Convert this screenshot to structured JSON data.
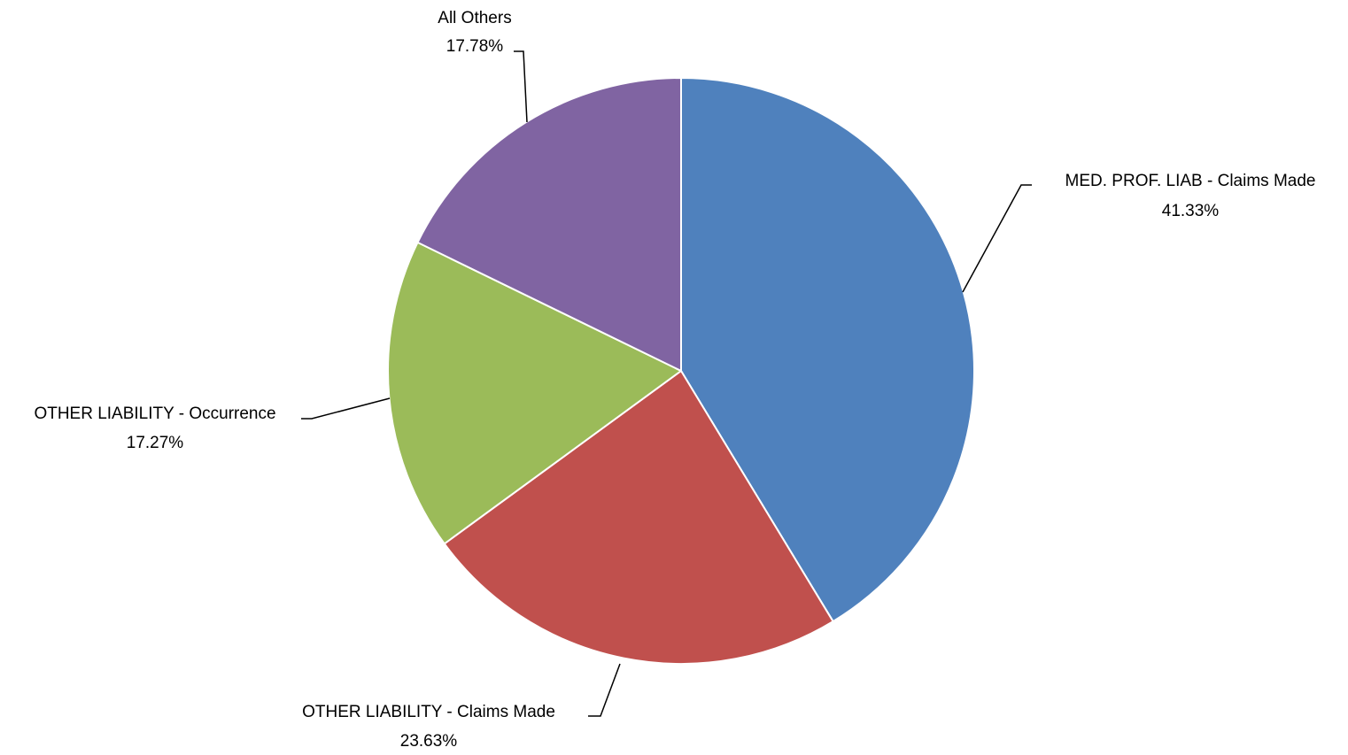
{
  "chart_data": {
    "type": "pie",
    "title": "",
    "slices": [
      {
        "name": "MED. PROF. LIAB - Claims Made",
        "value": 41.33,
        "label": "41.33%",
        "color": "#4F81BD"
      },
      {
        "name": "OTHER LIABILITY - Claims Made",
        "value": 23.63,
        "label": "23.63%",
        "color": "#C0504D"
      },
      {
        "name": "OTHER LIABILITY - Occurrence",
        "value": 17.27,
        "label": "17.27%",
        "color": "#9BBB59"
      },
      {
        "name": "All Others",
        "value": 17.78,
        "label": "17.78%",
        "color": "#8064A2"
      }
    ],
    "start_angle": "12 o'clock",
    "direction": "clockwise",
    "legend": "none",
    "data_labels": "outside with leader lines"
  }
}
